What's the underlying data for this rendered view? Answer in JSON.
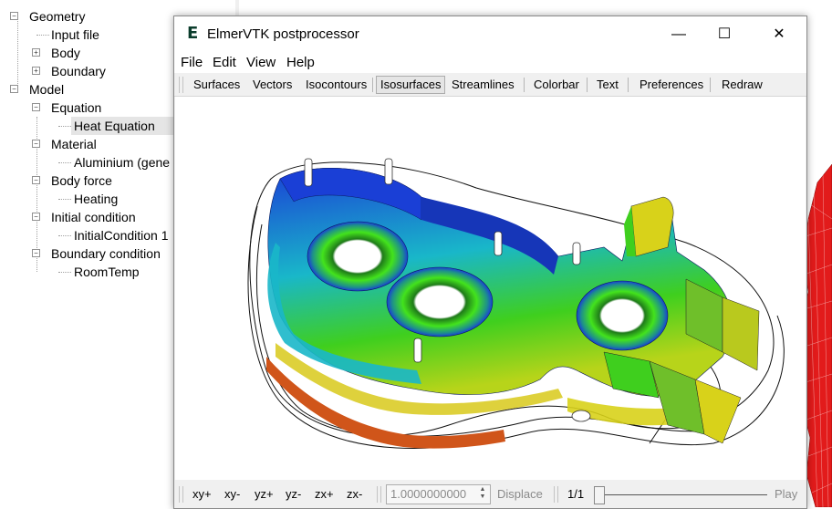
{
  "tree": {
    "items": [
      {
        "label": "Geometry",
        "level": 0,
        "expander": "-"
      },
      {
        "label": "Input file",
        "level": 1,
        "expander": ""
      },
      {
        "label": "Body",
        "level": 1,
        "expander": "+"
      },
      {
        "label": "Boundary",
        "level": 1,
        "expander": "+"
      },
      {
        "label": "Model",
        "level": 0,
        "expander": "-"
      },
      {
        "label": "Equation",
        "level": 1,
        "expander": "-"
      },
      {
        "label": "Heat Equation",
        "level": 2,
        "expander": ""
      },
      {
        "label": "Material",
        "level": 1,
        "expander": "-"
      },
      {
        "label": "Aluminium (gene",
        "level": 2,
        "expander": ""
      },
      {
        "label": "Body force",
        "level": 1,
        "expander": "-"
      },
      {
        "label": "Heating",
        "level": 2,
        "expander": ""
      },
      {
        "label": "Initial condition",
        "level": 1,
        "expander": "-"
      },
      {
        "label": "InitialCondition 1",
        "level": 2,
        "expander": ""
      },
      {
        "label": "Boundary condition",
        "level": 1,
        "expander": "-"
      },
      {
        "label": "RoomTemp",
        "level": 2,
        "expander": ""
      }
    ]
  },
  "window": {
    "title": "ElmerVTK postprocessor",
    "icon_letter": "E",
    "minimize": "—",
    "maximize": "☐",
    "close": "✕"
  },
  "menu": [
    "File",
    "Edit",
    "View",
    "Help"
  ],
  "toolbar": [
    "Surfaces",
    "Vectors",
    "Isocontours",
    "Isosurfaces",
    "Streamlines",
    "Colorbar",
    "Text",
    "Preferences",
    "Redraw"
  ],
  "toolbar_active": "Isosurfaces",
  "bottombar": {
    "views": [
      "xy+",
      "xy-",
      "yz+",
      "yz-",
      "zx+",
      "zx-"
    ],
    "displace_value": "1.0000000000",
    "displace_label": "Displace",
    "frame": "1/1",
    "play_label": "Play"
  },
  "colors": {
    "blue": "#1a3fd6",
    "cyan": "#19b7c9",
    "green": "#3fcf1e",
    "yellow": "#d8d21a",
    "orange": "#d05a12",
    "mesh_red": "#e21b1b"
  }
}
